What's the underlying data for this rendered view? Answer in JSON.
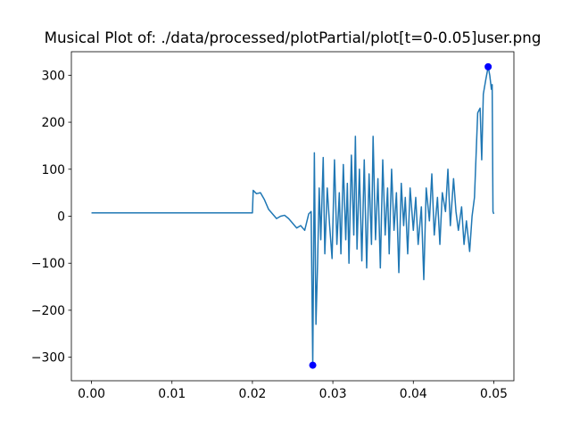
{
  "chart_data": {
    "type": "line",
    "title": "Musical Plot of: ./data/processed/plotPartial/plot[t=0-0.05]user.png",
    "xlim": [
      -0.0025,
      0.0525
    ],
    "ylim": [
      -350,
      350
    ],
    "xticks": [
      {
        "value": 0,
        "label": "0.00"
      },
      {
        "value": 0.01,
        "label": "0.01"
      },
      {
        "value": 0.02,
        "label": "0.02"
      },
      {
        "value": 0.03,
        "label": "0.03"
      },
      {
        "value": 0.04,
        "label": "0.04"
      },
      {
        "value": 0.05,
        "label": "0.05"
      }
    ],
    "yticks": [
      {
        "value": -300,
        "label": "−300"
      },
      {
        "value": -200,
        "label": "−200"
      },
      {
        "value": -100,
        "label": "−100"
      },
      0,
      100,
      200,
      300
    ],
    "series": [
      {
        "type": "line",
        "color": "#1f77b4",
        "x": [
          0,
          0.02,
          0.0201,
          0.0205,
          0.021,
          0.0215,
          0.022,
          0.0225,
          0.023,
          0.0235,
          0.024,
          0.0245,
          0.025,
          0.0255,
          0.026,
          0.0265,
          0.027,
          0.0273,
          0.0275,
          0.0277,
          0.0279,
          0.0281,
          0.0283,
          0.0285,
          0.0288,
          0.029,
          0.0293,
          0.0296,
          0.0299,
          0.0302,
          0.0305,
          0.0308,
          0.031,
          0.0313,
          0.0316,
          0.0318,
          0.032,
          0.0323,
          0.0326,
          0.0328,
          0.033,
          0.0333,
          0.0336,
          0.0339,
          0.0342,
          0.0345,
          0.0348,
          0.035,
          0.0353,
          0.0356,
          0.0359,
          0.0362,
          0.0365,
          0.0368,
          0.037,
          0.0373,
          0.0376,
          0.0379,
          0.0382,
          0.0385,
          0.0388,
          0.039,
          0.0393,
          0.0396,
          0.04,
          0.0403,
          0.0406,
          0.041,
          0.0413,
          0.0416,
          0.042,
          0.0423,
          0.0426,
          0.043,
          0.0433,
          0.0436,
          0.044,
          0.0443,
          0.0446,
          0.045,
          0.0453,
          0.0456,
          0.046,
          0.0463,
          0.0466,
          0.047,
          0.0473,
          0.0476,
          0.048,
          0.0483,
          0.0485,
          0.0487,
          0.049,
          0.0493,
          0.0495,
          0.0497,
          0.0498,
          0.0499,
          0.05
        ],
        "values": [
          7,
          7,
          55,
          48,
          50,
          35,
          15,
          5,
          -5,
          0,
          2,
          -5,
          -15,
          -25,
          -20,
          -30,
          5,
          10,
          -317,
          135,
          -230,
          -100,
          60,
          -50,
          125,
          -80,
          60,
          -20,
          -90,
          120,
          -60,
          50,
          -80,
          110,
          -50,
          70,
          -100,
          130,
          -40,
          170,
          -70,
          100,
          -95,
          120,
          -110,
          90,
          -60,
          170,
          -50,
          80,
          -110,
          120,
          -40,
          60,
          -80,
          100,
          -30,
          50,
          -120,
          70,
          -20,
          40,
          -80,
          60,
          -30,
          40,
          -60,
          20,
          -135,
          60,
          -10,
          90,
          -40,
          40,
          -60,
          50,
          10,
          100,
          -20,
          80,
          10,
          -30,
          20,
          -60,
          -10,
          -75,
          0,
          40,
          220,
          230,
          120,
          260,
          290,
          318,
          300,
          270,
          280,
          10,
          5
        ]
      },
      {
        "type": "scatter",
        "color": "#0000ff",
        "x": [
          0.0275,
          0.0493
        ],
        "values": [
          -317,
          318
        ]
      }
    ]
  }
}
